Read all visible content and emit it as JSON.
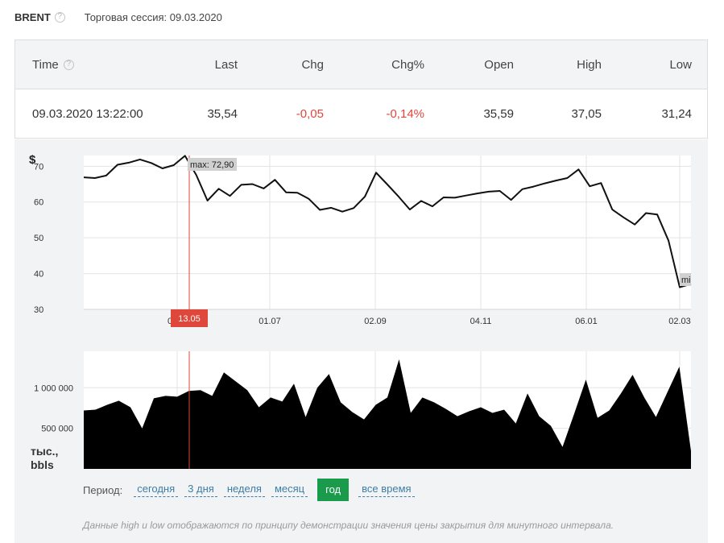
{
  "header": {
    "ticker": "BRENT",
    "session": "Торговая сессия: 09.03.2020"
  },
  "quote_table": {
    "columns": [
      "Time",
      "Last",
      "Chg",
      "Chg%",
      "Open",
      "High",
      "Low"
    ],
    "row": {
      "time": "09.03.2020 13:22:00",
      "last": "35,54",
      "chg": "-0,05",
      "chg_pct": "-0,14%",
      "open": "35,59",
      "high": "37,05",
      "low": "31,24"
    }
  },
  "colors": {
    "negative": "#e0473b",
    "active_period": "#1a9b4b",
    "link": "#3d7ea6",
    "cursor_line": "#e0473b"
  },
  "chart_data": [
    {
      "type": "line",
      "ylabel": "$",
      "ylim": [
        30,
        73
      ],
      "y_ticks": [
        "30",
        "40",
        "50",
        "60",
        "70"
      ],
      "x_tick_labels": [
        "01.07",
        "02.09",
        "04.11",
        "06.01",
        "02.03"
      ],
      "max_label": "max: 72,90",
      "min_label": "mi",
      "cursor_label": "13.05",
      "hidden_tick_fragment": "0",
      "grid": true,
      "values": [
        66.9,
        66.7,
        67.4,
        70.4,
        71.0,
        71.9,
        70.9,
        69.4,
        70.3,
        72.9,
        67.6,
        60.4,
        63.7,
        61.7,
        64.8,
        65.0,
        63.8,
        66.2,
        62.7,
        62.6,
        60.9,
        57.8,
        58.4,
        57.3,
        58.3,
        61.5,
        68.2,
        64.9,
        61.5,
        57.9,
        60.3,
        58.8,
        61.3,
        61.2,
        61.8,
        62.4,
        62.9,
        63.1,
        60.6,
        63.6,
        64.3,
        65.2,
        66.0,
        66.7,
        69.1,
        64.4,
        65.3,
        57.9,
        55.7,
        53.7,
        56.9,
        56.5,
        49.2,
        36.2,
        37.1
      ]
    },
    {
      "type": "area",
      "ylabel": "тыс., bbls",
      "y_ticks": [
        "500 000",
        "1 000 000"
      ],
      "ylim": [
        0,
        1450000
      ],
      "values": [
        720000,
        730000,
        790000,
        840000,
        760000,
        500000,
        870000,
        900000,
        890000,
        960000,
        970000,
        900000,
        1190000,
        1080000,
        970000,
        760000,
        880000,
        830000,
        1050000,
        640000,
        1000000,
        1170000,
        820000,
        700000,
        610000,
        790000,
        880000,
        1350000,
        690000,
        880000,
        820000,
        740000,
        650000,
        710000,
        760000,
        690000,
        730000,
        560000,
        930000,
        650000,
        530000,
        270000,
        680000,
        1100000,
        630000,
        720000,
        930000,
        1160000,
        880000,
        640000,
        950000,
        1260000,
        220000
      ]
    }
  ],
  "period": {
    "label": "Период:",
    "options": [
      "сегодня",
      "3 дня",
      "неделя",
      "месяц",
      "год",
      "все время"
    ],
    "active": "год"
  },
  "note": "Данные high и low отображаются по принципу демонстрации значения цены закрытия для минутного интервала."
}
